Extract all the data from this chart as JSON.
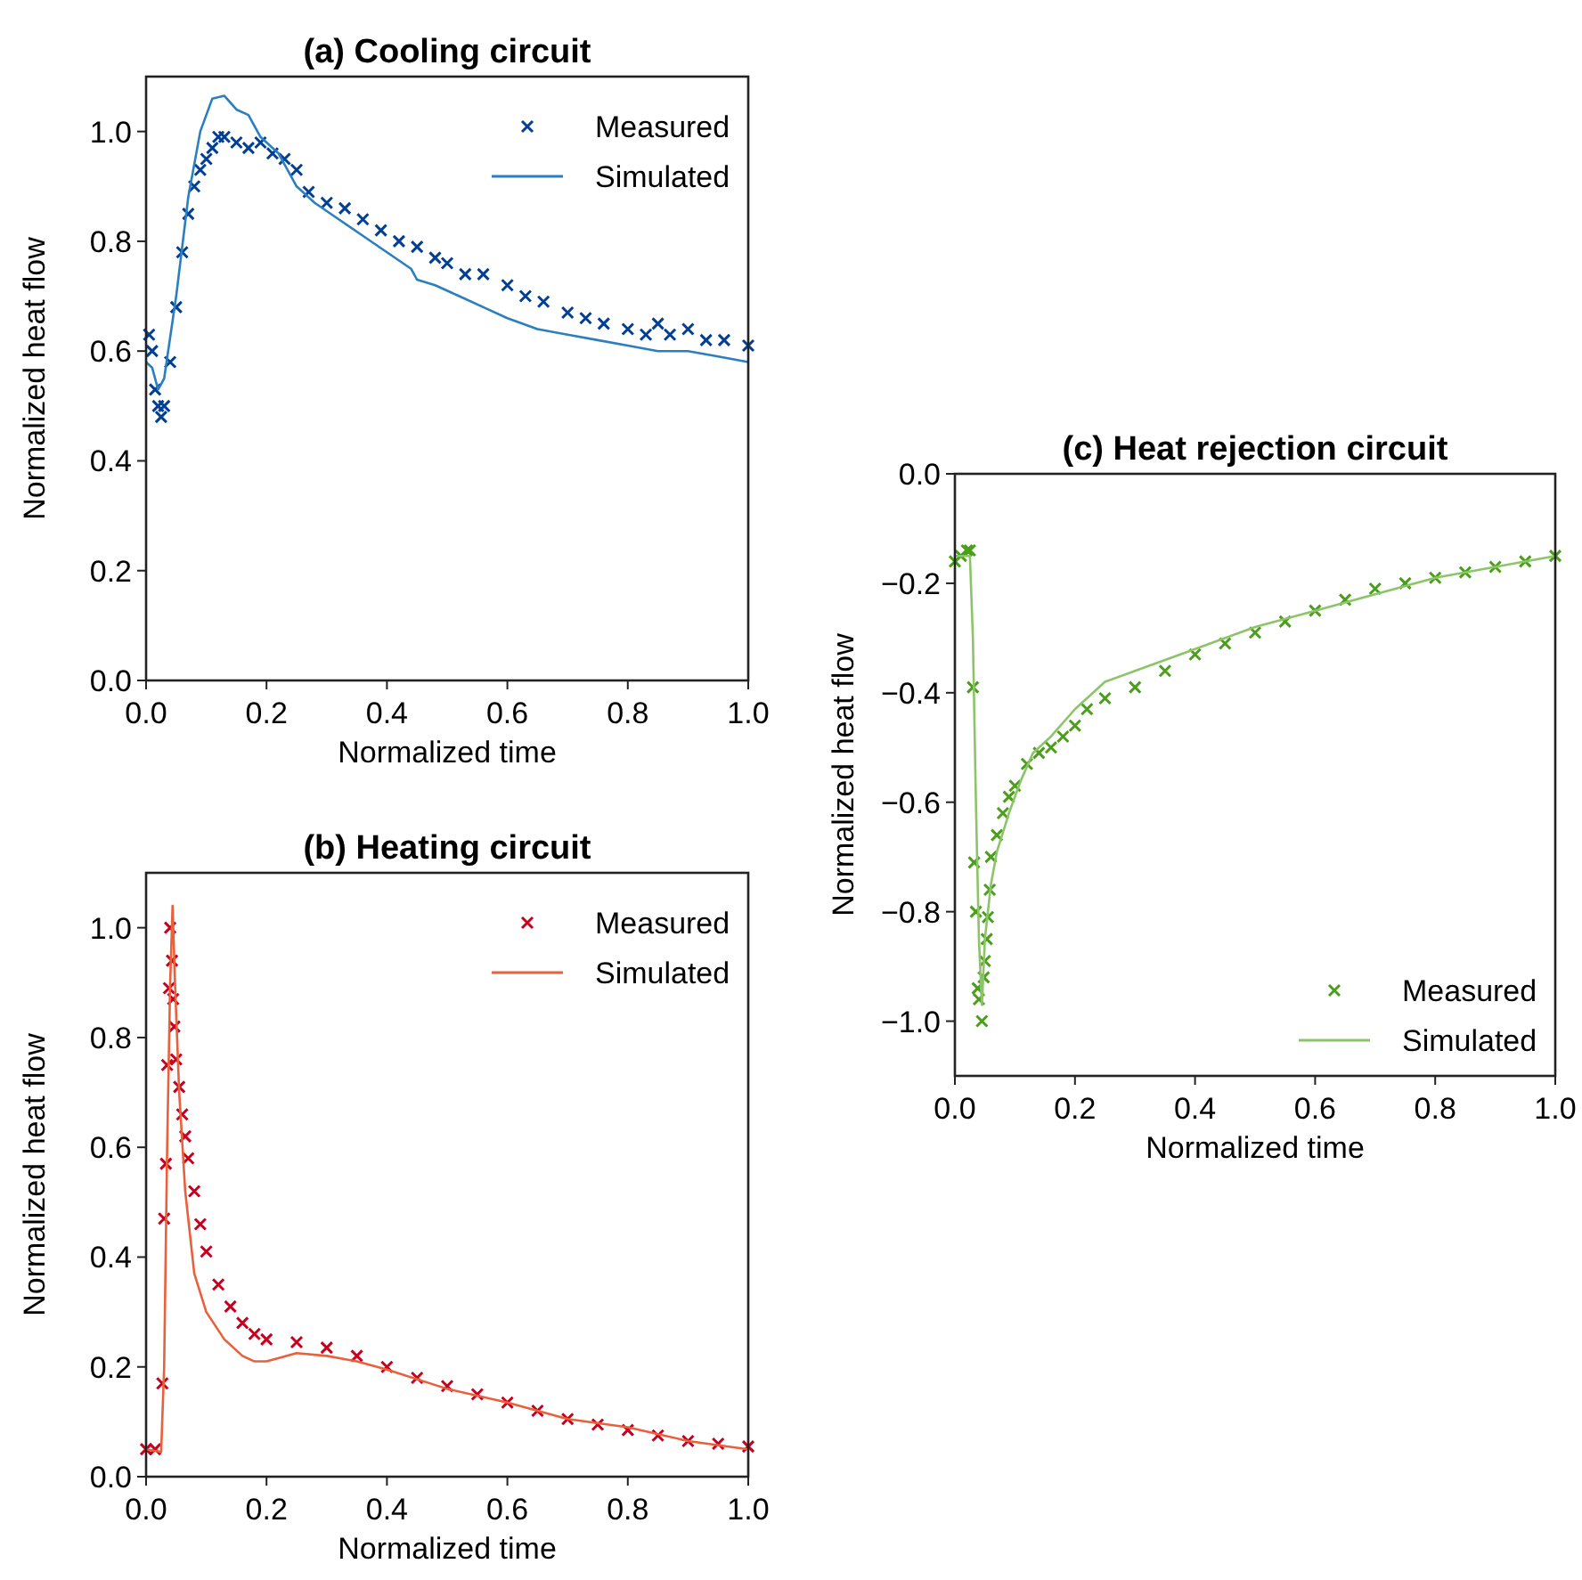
{
  "chart_data": [
    {
      "type": "scatter",
      "title": "(a) Cooling circuit",
      "xlabel": "Normalized time",
      "ylabel": "Normalized heat flow",
      "xlim": [
        0,
        1
      ],
      "ylim": [
        0,
        1.1
      ],
      "xticks": [
        {
          "value": 0,
          "label": "0.0"
        },
        {
          "value": 0.2,
          "label": "0.2"
        },
        {
          "value": 0.4,
          "label": "0.4"
        },
        {
          "value": 0.6,
          "label": "0.6"
        },
        {
          "value": 0.8,
          "label": "0.8"
        },
        {
          "value": 1,
          "label": "1.0"
        }
      ],
      "yticks": [
        {
          "value": 0,
          "label": "0.0"
        },
        {
          "value": 0.2,
          "label": "0.2"
        },
        {
          "value": 0.4,
          "label": "0.4"
        },
        {
          "value": 0.6,
          "label": "0.6"
        },
        {
          "value": 0.8,
          "label": "0.8"
        },
        {
          "value": 1,
          "label": "1.0"
        }
      ],
      "legend": "top right",
      "grid": false,
      "series": [
        {
          "name": "Measured",
          "type": "scatter",
          "marker": "cross",
          "color": "#003f95",
          "x": [
            0.005,
            0.01,
            0.015,
            0.02,
            0.025,
            0.03,
            0.04,
            0.05,
            0.06,
            0.07,
            0.08,
            0.09,
            0.1,
            0.11,
            0.12,
            0.13,
            0.15,
            0.17,
            0.19,
            0.21,
            0.23,
            0.25,
            0.27,
            0.3,
            0.33,
            0.36,
            0.39,
            0.42,
            0.45,
            0.48,
            0.5,
            0.53,
            0.56,
            0.6,
            0.63,
            0.66,
            0.7,
            0.73,
            0.76,
            0.8,
            0.83,
            0.85,
            0.87,
            0.9,
            0.93,
            0.96,
            1.0
          ],
          "values": [
            0.63,
            0.6,
            0.53,
            0.5,
            0.48,
            0.5,
            0.58,
            0.68,
            0.78,
            0.85,
            0.9,
            0.93,
            0.95,
            0.97,
            0.99,
            0.99,
            0.98,
            0.97,
            0.98,
            0.96,
            0.95,
            0.93,
            0.89,
            0.87,
            0.86,
            0.84,
            0.82,
            0.8,
            0.79,
            0.77,
            0.76,
            0.74,
            0.74,
            0.72,
            0.7,
            0.69,
            0.67,
            0.66,
            0.65,
            0.64,
            0.63,
            0.65,
            0.63,
            0.64,
            0.62,
            0.62,
            0.61
          ]
        },
        {
          "name": "Simulated",
          "type": "line",
          "color": "#2a7fc0",
          "x": [
            0,
            0.01,
            0.02,
            0.03,
            0.05,
            0.07,
            0.09,
            0.11,
            0.13,
            0.15,
            0.17,
            0.19,
            0.22,
            0.25,
            0.28,
            0.32,
            0.36,
            0.4,
            0.44,
            0.45,
            0.48,
            0.52,
            0.56,
            0.6,
            0.65,
            0.7,
            0.75,
            0.8,
            0.85,
            0.9,
            0.95,
            1.0
          ],
          "values": [
            0.58,
            0.57,
            0.53,
            0.55,
            0.7,
            0.88,
            1.0,
            1.06,
            1.065,
            1.04,
            1.03,
            0.99,
            0.96,
            0.9,
            0.87,
            0.84,
            0.81,
            0.78,
            0.75,
            0.73,
            0.72,
            0.7,
            0.68,
            0.66,
            0.64,
            0.63,
            0.62,
            0.61,
            0.6,
            0.6,
            0.59,
            0.58
          ]
        }
      ]
    },
    {
      "type": "scatter",
      "title": "(b) Heating circuit",
      "xlabel": "Normalized time",
      "ylabel": "Normalized heat flow",
      "xlim": [
        0,
        1
      ],
      "ylim": [
        0,
        1.1
      ],
      "xticks": [
        {
          "value": 0,
          "label": "0.0"
        },
        {
          "value": 0.2,
          "label": "0.2"
        },
        {
          "value": 0.4,
          "label": "0.4"
        },
        {
          "value": 0.6,
          "label": "0.6"
        },
        {
          "value": 0.8,
          "label": "0.8"
        },
        {
          "value": 1,
          "label": "1.0"
        }
      ],
      "yticks": [
        {
          "value": 0,
          "label": "0.0"
        },
        {
          "value": 0.2,
          "label": "0.2"
        },
        {
          "value": 0.4,
          "label": "0.4"
        },
        {
          "value": 0.6,
          "label": "0.6"
        },
        {
          "value": 0.8,
          "label": "0.8"
        },
        {
          "value": 1,
          "label": "1.0"
        }
      ],
      "legend": "top right",
      "grid": false,
      "series": [
        {
          "name": "Measured",
          "type": "scatter",
          "marker": "cross",
          "color": "#c8001e",
          "x": [
            0.0,
            0.015,
            0.027,
            0.03,
            0.033,
            0.035,
            0.038,
            0.04,
            0.043,
            0.045,
            0.047,
            0.05,
            0.055,
            0.06,
            0.065,
            0.07,
            0.08,
            0.09,
            0.1,
            0.12,
            0.14,
            0.16,
            0.18,
            0.2,
            0.25,
            0.3,
            0.35,
            0.4,
            0.45,
            0.5,
            0.55,
            0.6,
            0.65,
            0.7,
            0.75,
            0.8,
            0.85,
            0.9,
            0.95,
            1.0
          ],
          "values": [
            0.05,
            0.05,
            0.17,
            0.47,
            0.57,
            0.75,
            0.89,
            1.0,
            0.94,
            0.87,
            0.82,
            0.76,
            0.71,
            0.66,
            0.62,
            0.58,
            0.52,
            0.46,
            0.41,
            0.35,
            0.31,
            0.28,
            0.26,
            0.25,
            0.245,
            0.235,
            0.22,
            0.2,
            0.18,
            0.165,
            0.15,
            0.135,
            0.12,
            0.105,
            0.095,
            0.085,
            0.075,
            0.065,
            0.06,
            0.055
          ]
        },
        {
          "name": "Simulated",
          "type": "line",
          "color": "#e8603c",
          "x": [
            0,
            0.025,
            0.03,
            0.035,
            0.04,
            0.044,
            0.048,
            0.055,
            0.065,
            0.08,
            0.1,
            0.13,
            0.16,
            0.18,
            0.2,
            0.25,
            0.3,
            0.35,
            0.4,
            0.5,
            0.6,
            0.7,
            0.8,
            0.9,
            1.0
          ],
          "values": [
            0.05,
            0.045,
            0.2,
            0.6,
            0.9,
            1.04,
            0.9,
            0.7,
            0.52,
            0.37,
            0.3,
            0.25,
            0.22,
            0.21,
            0.21,
            0.225,
            0.22,
            0.21,
            0.195,
            0.16,
            0.135,
            0.105,
            0.09,
            0.065,
            0.05
          ]
        }
      ]
    },
    {
      "type": "scatter",
      "title": "(c) Heat rejection circuit",
      "xlabel": "Normalized time",
      "ylabel": "Normalized heat flow",
      "xlim": [
        0,
        1
      ],
      "ylim": [
        -1.1,
        0
      ],
      "xticks": [
        {
          "value": 0,
          "label": "0.0"
        },
        {
          "value": 0.2,
          "label": "0.2"
        },
        {
          "value": 0.4,
          "label": "0.4"
        },
        {
          "value": 0.6,
          "label": "0.6"
        },
        {
          "value": 0.8,
          "label": "0.8"
        },
        {
          "value": 1,
          "label": "1.0"
        }
      ],
      "yticks": [
        {
          "value": 0,
          "label": "0.0"
        },
        {
          "value": -0.2,
          "label": "−0.2"
        },
        {
          "value": -0.4,
          "label": "−0.4"
        },
        {
          "value": -0.6,
          "label": "−0.6"
        },
        {
          "value": -0.8,
          "label": "−0.8"
        },
        {
          "value": -1,
          "label": "−1.0"
        }
      ],
      "legend": "bottom right",
      "grid": false,
      "series": [
        {
          "name": "Measured",
          "type": "scatter",
          "marker": "cross",
          "color": "#4a9e1a",
          "x": [
            0.0,
            0.01,
            0.02,
            0.025,
            0.03,
            0.032,
            0.035,
            0.038,
            0.04,
            0.045,
            0.048,
            0.05,
            0.053,
            0.055,
            0.058,
            0.06,
            0.07,
            0.08,
            0.09,
            0.1,
            0.12,
            0.14,
            0.16,
            0.18,
            0.2,
            0.22,
            0.25,
            0.3,
            0.35,
            0.4,
            0.45,
            0.5,
            0.55,
            0.6,
            0.65,
            0.7,
            0.75,
            0.8,
            0.85,
            0.9,
            0.95,
            1.0
          ],
          "values": [
            -0.16,
            -0.15,
            -0.14,
            -0.14,
            -0.39,
            -0.71,
            -0.8,
            -0.94,
            -0.96,
            -1.0,
            -0.92,
            -0.89,
            -0.85,
            -0.81,
            -0.76,
            -0.7,
            -0.66,
            -0.62,
            -0.59,
            -0.57,
            -0.53,
            -0.51,
            -0.5,
            -0.48,
            -0.46,
            -0.43,
            -0.41,
            -0.39,
            -0.36,
            -0.33,
            -0.31,
            -0.29,
            -0.27,
            -0.25,
            -0.23,
            -0.21,
            -0.2,
            -0.19,
            -0.18,
            -0.17,
            -0.16,
            -0.15
          ]
        },
        {
          "name": "Simulated",
          "type": "line",
          "color": "#8cc46a",
          "x": [
            0,
            0.025,
            0.03,
            0.035,
            0.04,
            0.045,
            0.05,
            0.06,
            0.07,
            0.09,
            0.11,
            0.13,
            0.16,
            0.2,
            0.25,
            0.3,
            0.35,
            0.4,
            0.5,
            0.6,
            0.7,
            0.8,
            0.9,
            1.0
          ],
          "values": [
            -0.15,
            -0.15,
            -0.3,
            -0.6,
            -0.85,
            -0.97,
            -0.85,
            -0.75,
            -0.69,
            -0.62,
            -0.56,
            -0.51,
            -0.48,
            -0.43,
            -0.38,
            -0.36,
            -0.34,
            -0.32,
            -0.28,
            -0.25,
            -0.22,
            -0.19,
            -0.17,
            -0.15
          ]
        }
      ]
    }
  ]
}
